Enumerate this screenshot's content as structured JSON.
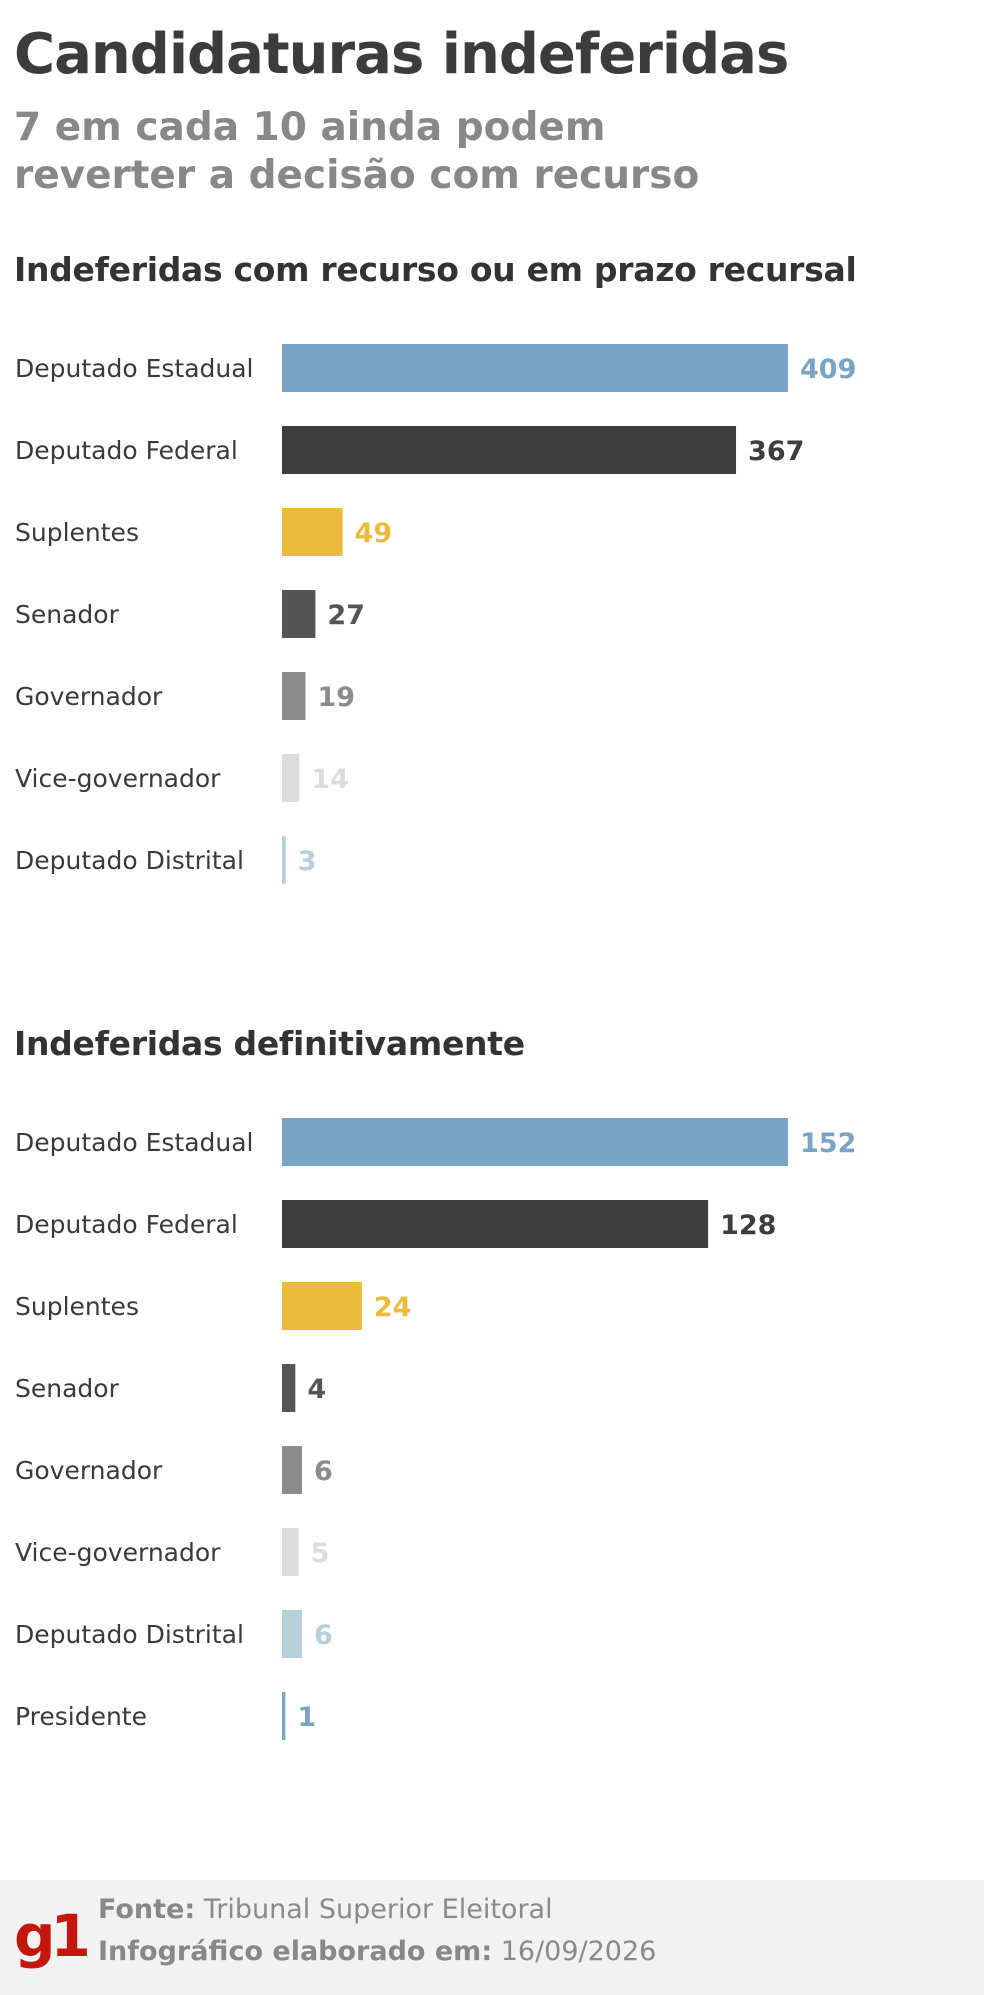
{
  "header": {
    "title": "Candidaturas indeferidas",
    "subtitle": "7 em cada 10 ainda podem reverter a decisão com recurso"
  },
  "chart_data": [
    {
      "type": "bar",
      "orientation": "horizontal",
      "title": "Indeferidas com recurso ou em prazo recursal",
      "categories": [
        "Deputado Estadual",
        "Deputado Federal",
        "Suplentes",
        "Senador",
        "Governador",
        "Vice-governador",
        "Deputado Distrital"
      ],
      "values": [
        409,
        367,
        49,
        27,
        19,
        14,
        3
      ],
      "colors": [
        "#7aa4c6",
        "#3d3d3d",
        "#ebbb3c",
        "#555555",
        "#8c8c8c",
        "#dcdcdc",
        "#b7cfdb"
      ],
      "xlim": [
        0,
        409
      ]
    },
    {
      "type": "bar",
      "orientation": "horizontal",
      "title": "Indeferidas definitivamente",
      "categories": [
        "Deputado Estadual",
        "Deputado Federal",
        "Suplentes",
        "Senador",
        "Governador",
        "Vice-governador",
        "Deputado Distrital",
        "Presidente"
      ],
      "values": [
        152,
        128,
        24,
        4,
        6,
        5,
        6,
        1
      ],
      "colors": [
        "#7aa4c6",
        "#3d3d3d",
        "#ebbb3c",
        "#555555",
        "#8c8c8c",
        "#dcdcdc",
        "#b7cfdb",
        "#7aa4c6"
      ],
      "xlim": [
        0,
        152
      ]
    }
  ],
  "footer": {
    "logo": "g1",
    "source_label": "Fonte:",
    "source_value": "Tribunal Superior Eleitoral",
    "date_label": "Infográfico elaborado em:",
    "date_value": "16/09/2026"
  }
}
